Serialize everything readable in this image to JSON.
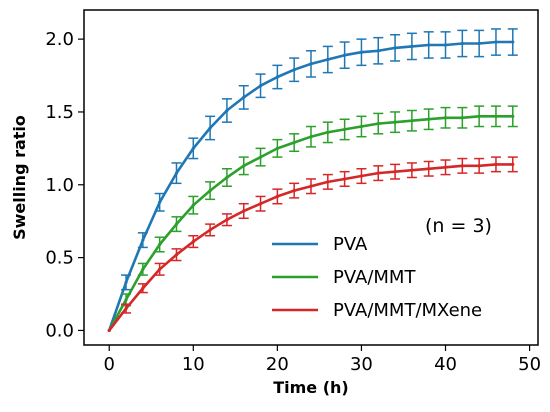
{
  "chart_data": {
    "type": "line",
    "title": "",
    "xlabel": "Time (h)",
    "ylabel": "Swelling ratio",
    "xlim": [
      -3,
      51
    ],
    "ylim": [
      -0.1,
      2.2
    ],
    "xticks": [
      "0",
      "10",
      "20",
      "30",
      "40",
      "50"
    ],
    "yticks": [
      "0.0",
      "0.5",
      "1.0",
      "1.5",
      "2.0"
    ],
    "xtick_values": [
      0,
      10,
      20,
      30,
      40,
      50
    ],
    "ytick_values": [
      0.0,
      0.5,
      1.0,
      1.5,
      2.0
    ],
    "grid": false,
    "legend_position": "lower-right",
    "annotation": "(n = 3)",
    "x": [
      0,
      2,
      4,
      6,
      8,
      10,
      12,
      14,
      16,
      18,
      20,
      22,
      24,
      26,
      28,
      30,
      32,
      34,
      36,
      38,
      40,
      42,
      44,
      46,
      48
    ],
    "series": [
      {
        "name": "PVA",
        "color": "#1f77b4",
        "values": [
          0.0,
          0.33,
          0.62,
          0.88,
          1.08,
          1.25,
          1.39,
          1.51,
          1.6,
          1.68,
          1.74,
          1.79,
          1.83,
          1.86,
          1.89,
          1.91,
          1.92,
          1.94,
          1.95,
          1.96,
          1.96,
          1.97,
          1.97,
          1.98,
          1.98
        ],
        "error": [
          0.0,
          0.05,
          0.05,
          0.06,
          0.07,
          0.07,
          0.08,
          0.08,
          0.08,
          0.08,
          0.08,
          0.08,
          0.09,
          0.09,
          0.09,
          0.09,
          0.09,
          0.09,
          0.09,
          0.09,
          0.09,
          0.09,
          0.09,
          0.09,
          0.09
        ]
      },
      {
        "name": "PVA/MMT",
        "color": "#2ca02c",
        "values": [
          0.0,
          0.21,
          0.42,
          0.59,
          0.73,
          0.86,
          0.96,
          1.05,
          1.13,
          1.19,
          1.25,
          1.29,
          1.33,
          1.36,
          1.38,
          1.4,
          1.42,
          1.43,
          1.44,
          1.45,
          1.46,
          1.46,
          1.47,
          1.47,
          1.47
        ],
        "error": [
          0.0,
          0.04,
          0.04,
          0.05,
          0.05,
          0.06,
          0.06,
          0.06,
          0.06,
          0.06,
          0.06,
          0.06,
          0.07,
          0.07,
          0.07,
          0.07,
          0.07,
          0.07,
          0.07,
          0.07,
          0.07,
          0.07,
          0.07,
          0.07,
          0.07
        ]
      },
      {
        "name": "PVA/MMT/MXene",
        "color": "#d62728",
        "values": [
          0.0,
          0.15,
          0.29,
          0.42,
          0.52,
          0.61,
          0.69,
          0.76,
          0.82,
          0.87,
          0.92,
          0.96,
          0.99,
          1.02,
          1.04,
          1.06,
          1.08,
          1.09,
          1.1,
          1.11,
          1.12,
          1.13,
          1.13,
          1.14,
          1.14
        ],
        "error": [
          0.0,
          0.03,
          0.03,
          0.04,
          0.04,
          0.04,
          0.04,
          0.04,
          0.05,
          0.05,
          0.05,
          0.05,
          0.05,
          0.05,
          0.05,
          0.05,
          0.05,
          0.05,
          0.05,
          0.05,
          0.05,
          0.05,
          0.05,
          0.05,
          0.05
        ]
      }
    ]
  }
}
